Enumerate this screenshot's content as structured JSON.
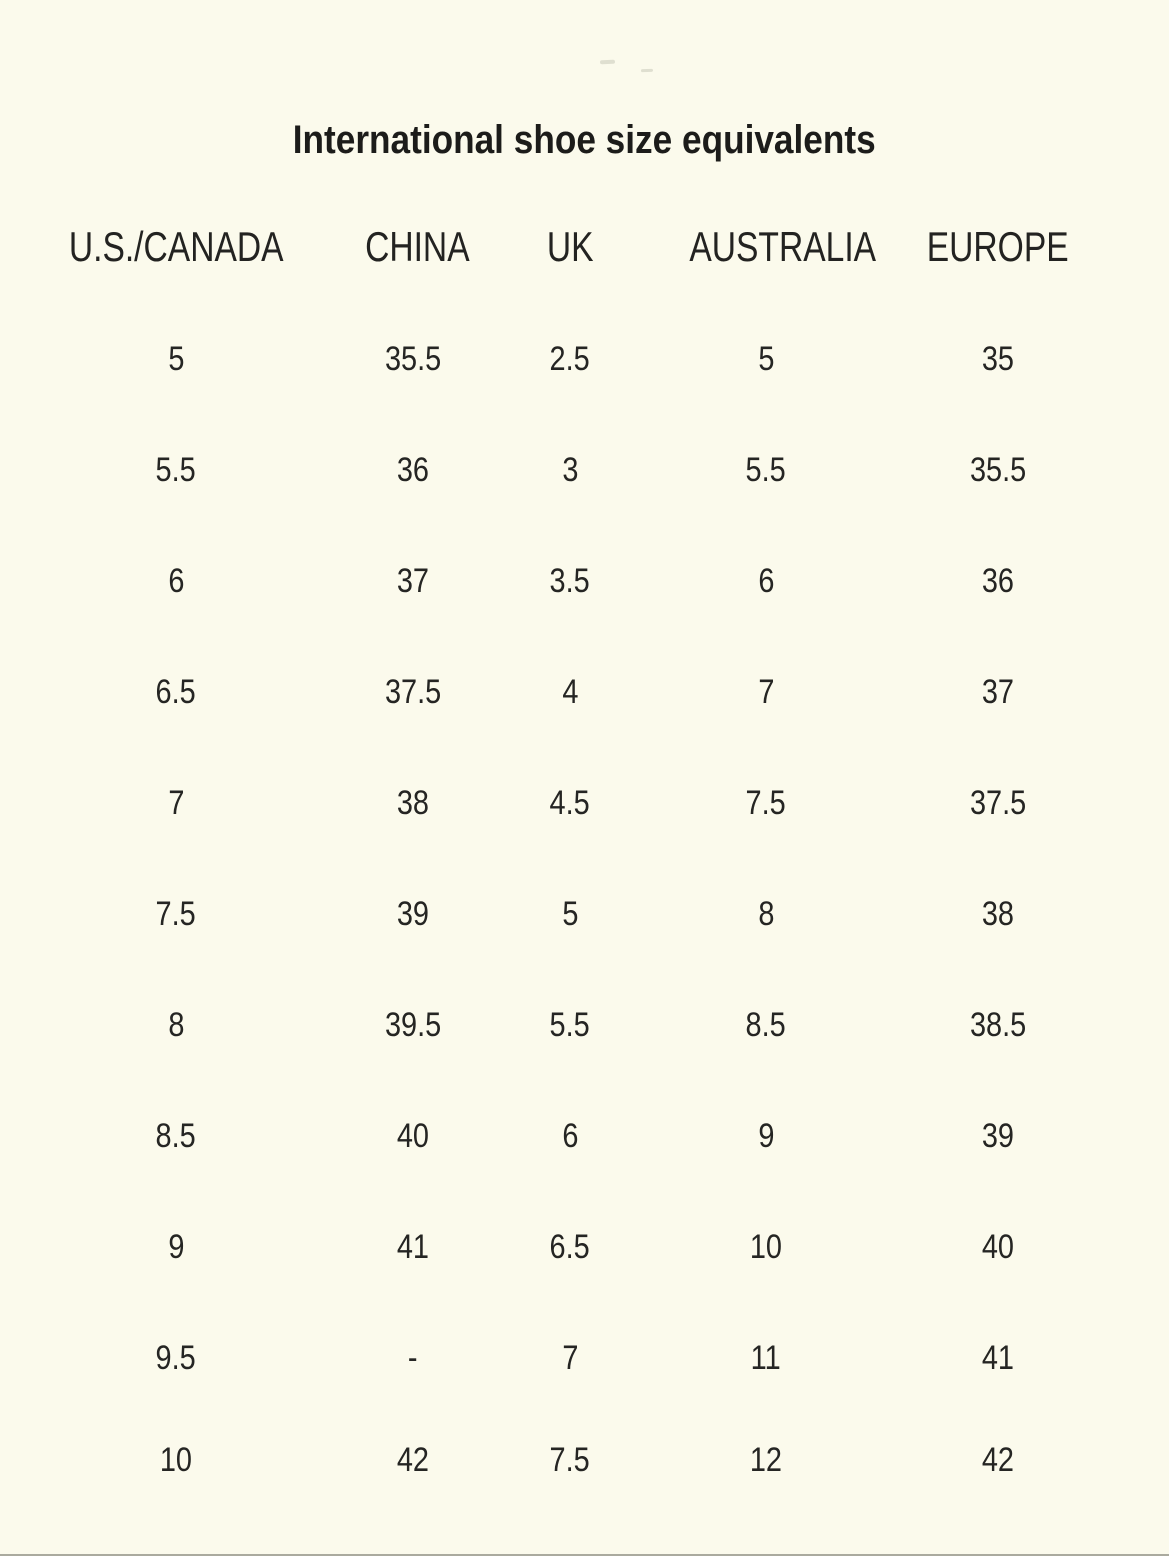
{
  "page": {
    "background_color": "#fbfaec",
    "text_color": "#222220"
  },
  "chart_data": {
    "type": "table",
    "title": "International shoe size equivalents",
    "columns": [
      "U.S./CANADA",
      "CHINA",
      "UK",
      "AUSTRALIA",
      "EUROPE"
    ],
    "rows": [
      [
        "5",
        "35.5",
        "2.5",
        "5",
        "35"
      ],
      [
        "5.5",
        "36",
        "3",
        "5.5",
        "35.5"
      ],
      [
        "6",
        "37",
        "3.5",
        "6",
        "36"
      ],
      [
        "6.5",
        "37.5",
        "4",
        "7",
        "37"
      ],
      [
        "7",
        "38",
        "4.5",
        "7.5",
        "37.5"
      ],
      [
        "7.5",
        "39",
        "5",
        "8",
        "38"
      ],
      [
        "8",
        "39.5",
        "5.5",
        "8.5",
        "38.5"
      ],
      [
        "8.5",
        "40",
        "6",
        "9",
        "39"
      ],
      [
        "9",
        "41",
        "6.5",
        "10",
        "40"
      ],
      [
        "9.5",
        "-",
        "7",
        "11",
        "41"
      ],
      [
        "10",
        "42",
        "7.5",
        "12",
        "42"
      ]
    ]
  }
}
